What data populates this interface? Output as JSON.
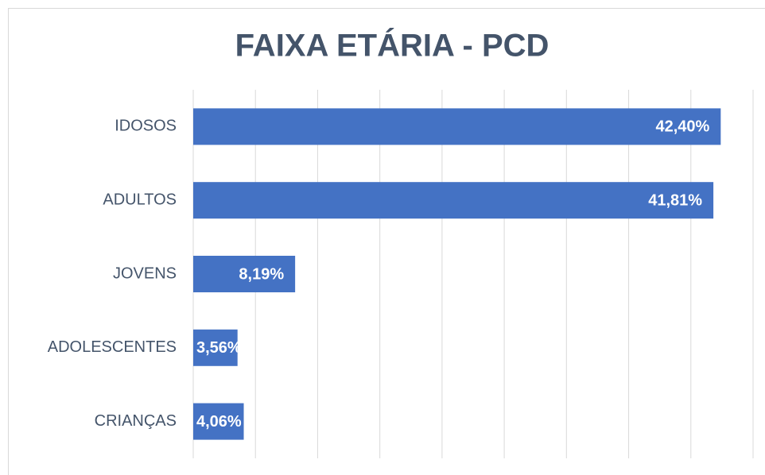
{
  "chart_data": {
    "type": "bar",
    "orientation": "horizontal",
    "title": "FAIXA ETÁRIA - PCD",
    "categories": [
      "IDOSOS",
      "ADULTOS",
      "JOVENS",
      "ADOLESCENTES",
      "CRIANÇAS"
    ],
    "values": [
      42.4,
      41.81,
      8.19,
      3.56,
      4.06
    ],
    "value_labels": [
      "42,40%",
      "41,81%",
      "8,19%",
      "3,56%",
      "4,06%"
    ],
    "color": "#4472c4",
    "xlim": [
      0,
      45
    ],
    "xticks": [
      0,
      5,
      10,
      15,
      20,
      25,
      30,
      35,
      40,
      45
    ],
    "grid": true
  }
}
